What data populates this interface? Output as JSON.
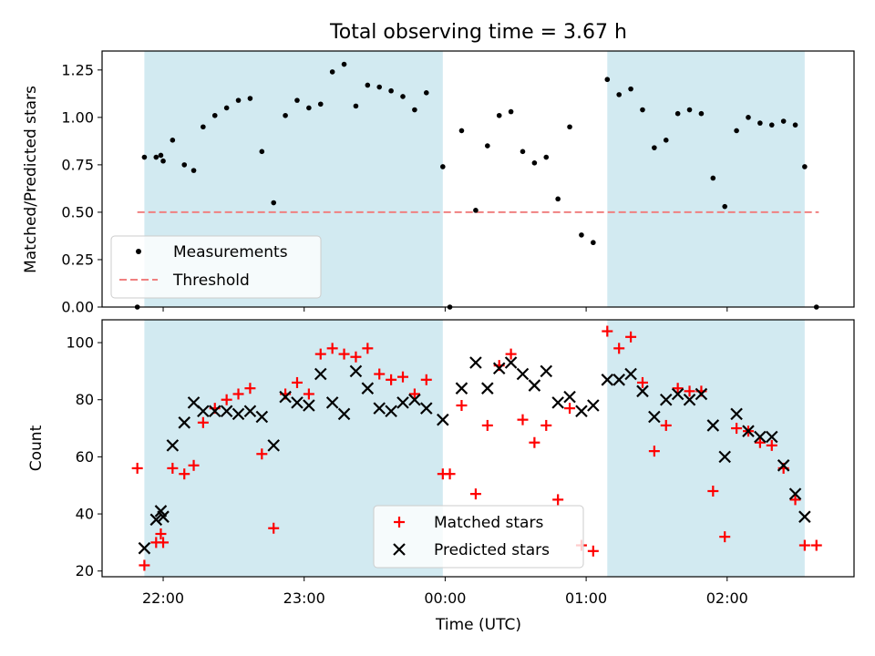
{
  "colors": {
    "shade": "#add8e6",
    "measurement": "#000000",
    "threshold": "#f08080",
    "matched": "#ff0000",
    "predicted": "#000000"
  },
  "chart_data": [
    {
      "type": "scatter",
      "title": "Total observing time = 3.67 h",
      "xlabel": "",
      "ylabel": "Matched/Predicted stars",
      "xlim": [
        "21:34",
        "02:54"
      ],
      "ylim": [
        0,
        1.35
      ],
      "yticks": [
        "0.00",
        "0.25",
        "0.50",
        "0.75",
        "1.00",
        "1.25"
      ],
      "grid": false,
      "legend_position": "lower-left",
      "shaded_intervals": [
        [
          "21:52",
          "23:59"
        ],
        [
          "01:09",
          "02:33"
        ]
      ],
      "threshold": {
        "name": "Threshold",
        "y": 0.5,
        "x_range": [
          "21:49",
          "02:39"
        ]
      },
      "series": [
        {
          "name": "Measurements",
          "marker": "dot",
          "points": [
            [
              "21:49",
              0.0
            ],
            [
              "21:52",
              0.79
            ],
            [
              "21:57",
              0.79
            ],
            [
              "21:59",
              0.8
            ],
            [
              "22:00",
              0.77
            ],
            [
              "22:04",
              0.88
            ],
            [
              "22:09",
              0.75
            ],
            [
              "22:13",
              0.72
            ],
            [
              "22:17",
              0.95
            ],
            [
              "22:22",
              1.01
            ],
            [
              "22:27",
              1.05
            ],
            [
              "22:32",
              1.09
            ],
            [
              "22:37",
              1.1
            ],
            [
              "22:42",
              0.82
            ],
            [
              "22:47",
              0.55
            ],
            [
              "22:52",
              1.01
            ],
            [
              "22:57",
              1.09
            ],
            [
              "23:02",
              1.05
            ],
            [
              "23:07",
              1.07
            ],
            [
              "23:12",
              1.24
            ],
            [
              "23:17",
              1.28
            ],
            [
              "23:22",
              1.06
            ],
            [
              "23:27",
              1.17
            ],
            [
              "23:32",
              1.16
            ],
            [
              "23:37",
              1.14
            ],
            [
              "23:42",
              1.11
            ],
            [
              "23:47",
              1.04
            ],
            [
              "23:52",
              1.13
            ],
            [
              "23:59",
              0.74
            ],
            [
              "00:02",
              0.0
            ],
            [
              "00:07",
              0.93
            ],
            [
              "00:13",
              0.51
            ],
            [
              "00:18",
              0.85
            ],
            [
              "00:23",
              1.01
            ],
            [
              "00:28",
              1.03
            ],
            [
              "00:33",
              0.82
            ],
            [
              "00:38",
              0.76
            ],
            [
              "00:43",
              0.79
            ],
            [
              "00:48",
              0.57
            ],
            [
              "00:53",
              0.95
            ],
            [
              "00:58",
              0.38
            ],
            [
              "01:03",
              0.34
            ],
            [
              "01:09",
              1.2
            ],
            [
              "01:14",
              1.12
            ],
            [
              "01:19",
              1.15
            ],
            [
              "01:24",
              1.04
            ],
            [
              "01:29",
              0.84
            ],
            [
              "01:34",
              0.88
            ],
            [
              "01:39",
              1.02
            ],
            [
              "01:44",
              1.04
            ],
            [
              "01:49",
              1.02
            ],
            [
              "01:54",
              0.68
            ],
            [
              "01:59",
              0.53
            ],
            [
              "02:04",
              0.93
            ],
            [
              "02:09",
              1.0
            ],
            [
              "02:14",
              0.97
            ],
            [
              "02:19",
              0.96
            ],
            [
              "02:24",
              0.98
            ],
            [
              "02:29",
              0.96
            ],
            [
              "02:33",
              0.74
            ],
            [
              "02:38",
              0.0
            ]
          ]
        }
      ]
    },
    {
      "type": "scatter",
      "title": "",
      "xlabel": "Time (UTC)",
      "ylabel": "Count",
      "xlim": [
        "21:34",
        "02:54"
      ],
      "ylim": [
        18,
        108
      ],
      "xticks": [
        "22:00",
        "23:00",
        "00:00",
        "01:00",
        "02:00"
      ],
      "yticks": [
        "20",
        "40",
        "60",
        "80",
        "100"
      ],
      "grid": false,
      "legend_position": "bottom-center",
      "shaded_intervals": [
        [
          "21:52",
          "23:59"
        ],
        [
          "01:09",
          "02:33"
        ]
      ],
      "series": [
        {
          "name": "Matched stars",
          "marker": "plus",
          "points": [
            [
              "21:49",
              56
            ],
            [
              "21:52",
              22
            ],
            [
              "21:57",
              30
            ],
            [
              "21:59",
              33
            ],
            [
              "22:00",
              30
            ],
            [
              "22:04",
              56
            ],
            [
              "22:09",
              54
            ],
            [
              "22:13",
              57
            ],
            [
              "22:17",
              72
            ],
            [
              "22:22",
              77
            ],
            [
              "22:27",
              80
            ],
            [
              "22:32",
              82
            ],
            [
              "22:37",
              84
            ],
            [
              "22:42",
              61
            ],
            [
              "22:47",
              35
            ],
            [
              "22:52",
              82
            ],
            [
              "22:57",
              86
            ],
            [
              "23:02",
              82
            ],
            [
              "23:07",
              96
            ],
            [
              "23:12",
              98
            ],
            [
              "23:17",
              96
            ],
            [
              "23:22",
              95
            ],
            [
              "23:27",
              98
            ],
            [
              "23:32",
              89
            ],
            [
              "23:37",
              87
            ],
            [
              "23:42",
              88
            ],
            [
              "23:47",
              82
            ],
            [
              "23:52",
              87
            ],
            [
              "23:59",
              54
            ],
            [
              "00:02",
              54
            ],
            [
              "00:07",
              78
            ],
            [
              "00:13",
              47
            ],
            [
              "00:18",
              71
            ],
            [
              "00:23",
              92
            ],
            [
              "00:28",
              96
            ],
            [
              "00:33",
              73
            ],
            [
              "00:38",
              65
            ],
            [
              "00:43",
              71
            ],
            [
              "00:48",
              45
            ],
            [
              "00:53",
              77
            ],
            [
              "00:58",
              29
            ],
            [
              "01:03",
              27
            ],
            [
              "01:09",
              104
            ],
            [
              "01:14",
              98
            ],
            [
              "01:19",
              102
            ],
            [
              "01:24",
              86
            ],
            [
              "01:29",
              62
            ],
            [
              "01:34",
              71
            ],
            [
              "01:39",
              84
            ],
            [
              "01:44",
              83
            ],
            [
              "01:49",
              83
            ],
            [
              "01:54",
              48
            ],
            [
              "01:59",
              32
            ],
            [
              "02:04",
              70
            ],
            [
              "02:09",
              69
            ],
            [
              "02:14",
              65
            ],
            [
              "02:19",
              64
            ],
            [
              "02:24",
              56
            ],
            [
              "02:29",
              45
            ],
            [
              "02:33",
              29
            ],
            [
              "02:38",
              29
            ]
          ]
        },
        {
          "name": "Predicted stars",
          "marker": "x",
          "points": [
            [
              "21:52",
              28
            ],
            [
              "21:57",
              38
            ],
            [
              "21:59",
              41
            ],
            [
              "22:00",
              39
            ],
            [
              "22:04",
              64
            ],
            [
              "22:09",
              72
            ],
            [
              "22:13",
              79
            ],
            [
              "22:17",
              76
            ],
            [
              "22:22",
              76
            ],
            [
              "22:27",
              76
            ],
            [
              "22:32",
              75
            ],
            [
              "22:37",
              76
            ],
            [
              "22:42",
              74
            ],
            [
              "22:47",
              64
            ],
            [
              "22:52",
              81
            ],
            [
              "22:57",
              79
            ],
            [
              "23:02",
              78
            ],
            [
              "23:07",
              89
            ],
            [
              "23:12",
              79
            ],
            [
              "23:17",
              75
            ],
            [
              "23:22",
              90
            ],
            [
              "23:27",
              84
            ],
            [
              "23:32",
              77
            ],
            [
              "23:37",
              76
            ],
            [
              "23:42",
              79
            ],
            [
              "23:47",
              80
            ],
            [
              "23:52",
              77
            ],
            [
              "23:59",
              73
            ],
            [
              "00:07",
              84
            ],
            [
              "00:13",
              93
            ],
            [
              "00:18",
              84
            ],
            [
              "00:23",
              91
            ],
            [
              "00:28",
              93
            ],
            [
              "00:33",
              89
            ],
            [
              "00:38",
              85
            ],
            [
              "00:43",
              90
            ],
            [
              "00:48",
              79
            ],
            [
              "00:53",
              81
            ],
            [
              "00:58",
              76
            ],
            [
              "01:03",
              78
            ],
            [
              "01:09",
              87
            ],
            [
              "01:14",
              87
            ],
            [
              "01:19",
              89
            ],
            [
              "01:24",
              83
            ],
            [
              "01:29",
              74
            ],
            [
              "01:34",
              80
            ],
            [
              "01:39",
              82
            ],
            [
              "01:44",
              80
            ],
            [
              "01:49",
              82
            ],
            [
              "01:54",
              71
            ],
            [
              "01:59",
              60
            ],
            [
              "02:04",
              75
            ],
            [
              "02:09",
              69
            ],
            [
              "02:14",
              67
            ],
            [
              "02:19",
              67
            ],
            [
              "02:24",
              57
            ],
            [
              "02:29",
              47
            ],
            [
              "02:33",
              39
            ]
          ]
        }
      ]
    }
  ]
}
